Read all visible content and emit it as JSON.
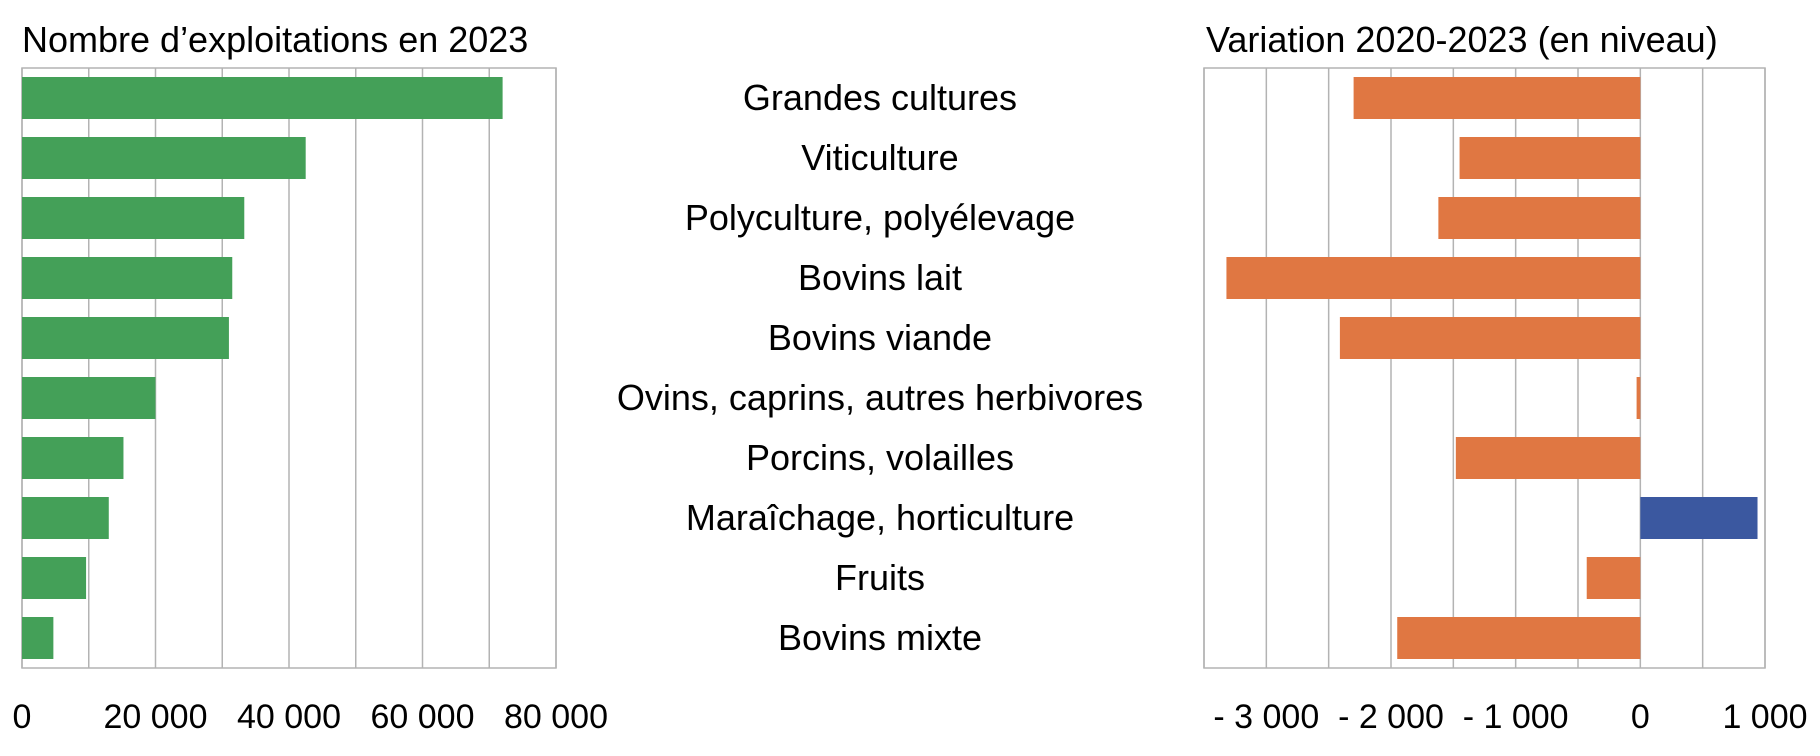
{
  "chart_data": [
    {
      "type": "bar",
      "orientation": "horizontal",
      "title": "Nombre d’exploitations en 2023",
      "categories": [
        "Grandes cultures",
        "Viticulture",
        "Polyculture, polyélevage",
        "Bovins lait",
        "Bovins viande",
        "Ovins, caprins, autres herbivores",
        "Porcins, volailles",
        "Maraîchage, horticulture",
        "Fruits",
        "Bovins mixte"
      ],
      "values": [
        72000,
        42500,
        33300,
        31500,
        31000,
        20000,
        15200,
        13000,
        9600,
        4700
      ],
      "xlim": [
        0,
        80000
      ],
      "x_ticks": [
        0,
        20000,
        40000,
        60000,
        80000
      ],
      "x_tick_labels": [
        "0",
        "20 000",
        "40 000",
        "60 000",
        "80 000"
      ],
      "grid": true,
      "colors": {
        "bar": "#44a058"
      }
    },
    {
      "type": "bar",
      "orientation": "horizontal",
      "title": "Variation 2020-2023 (en niveau)",
      "categories": [
        "Grandes cultures",
        "Viticulture",
        "Polyculture, polyélevage",
        "Bovins lait",
        "Bovins viande",
        "Ovins, caprins, autres herbivores",
        "Porcins, volailles",
        "Maraîchage, horticulture",
        "Fruits",
        "Bovins mixte"
      ],
      "values": [
        -2300,
        -1450,
        -1620,
        -3320,
        -2410,
        -30,
        -1480,
        940,
        -430,
        -1950
      ],
      "xlim": [
        -3500,
        1000
      ],
      "x_ticks": [
        -3000,
        -2000,
        -1000,
        0,
        1000
      ],
      "x_tick_labels": [
        "- 3 000",
        "- 2 000",
        "- 1 000",
        "0",
        "1 000"
      ],
      "grid": true,
      "colors": {
        "negative": "#e07742",
        "positive": "#3b58a0"
      }
    }
  ]
}
